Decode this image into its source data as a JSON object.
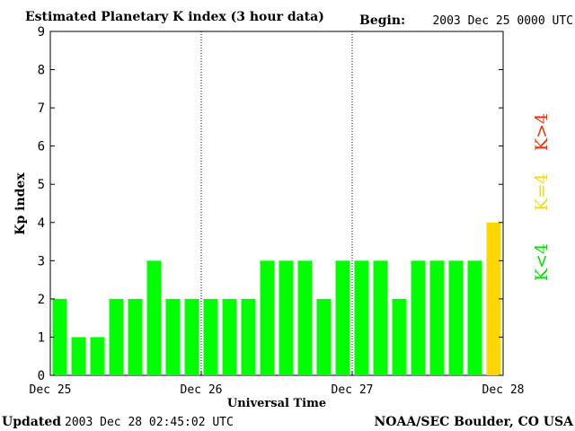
{
  "header": {
    "title": "Estimated Planetary K index (3 hour data)",
    "begin_label": "Begin:",
    "begin_value": "2003 Dec 25 0000 UTC"
  },
  "footer": {
    "updated_label": "Updated",
    "updated_value": "2003 Dec 28 02:45:02 UTC",
    "source": "NOAA/SEC Boulder, CO USA"
  },
  "legend": {
    "high": "K>4",
    "equal": "K=4",
    "low": "K<4"
  },
  "colors": {
    "low": "#00ff00",
    "equal": "#ffd700",
    "high": "#ff2a00",
    "frame": "#000000"
  },
  "chart_data": {
    "type": "bar",
    "xlabel": "Universal Time",
    "ylabel": "Kp index",
    "ylim": [
      0,
      9
    ],
    "yticks": [
      0,
      1,
      2,
      3,
      4,
      5,
      6,
      7,
      8,
      9
    ],
    "xticks": [
      "Dec 25",
      "Dec 26",
      "Dec 27",
      "Dec 28"
    ],
    "interval_hours": 3,
    "day_dividers": "dotted",
    "values": [
      2,
      1,
      1,
      2,
      2,
      3,
      2,
      2,
      2,
      2,
      2,
      3,
      3,
      3,
      2,
      3,
      3,
      3,
      2,
      3,
      3,
      3,
      3,
      4
    ]
  }
}
